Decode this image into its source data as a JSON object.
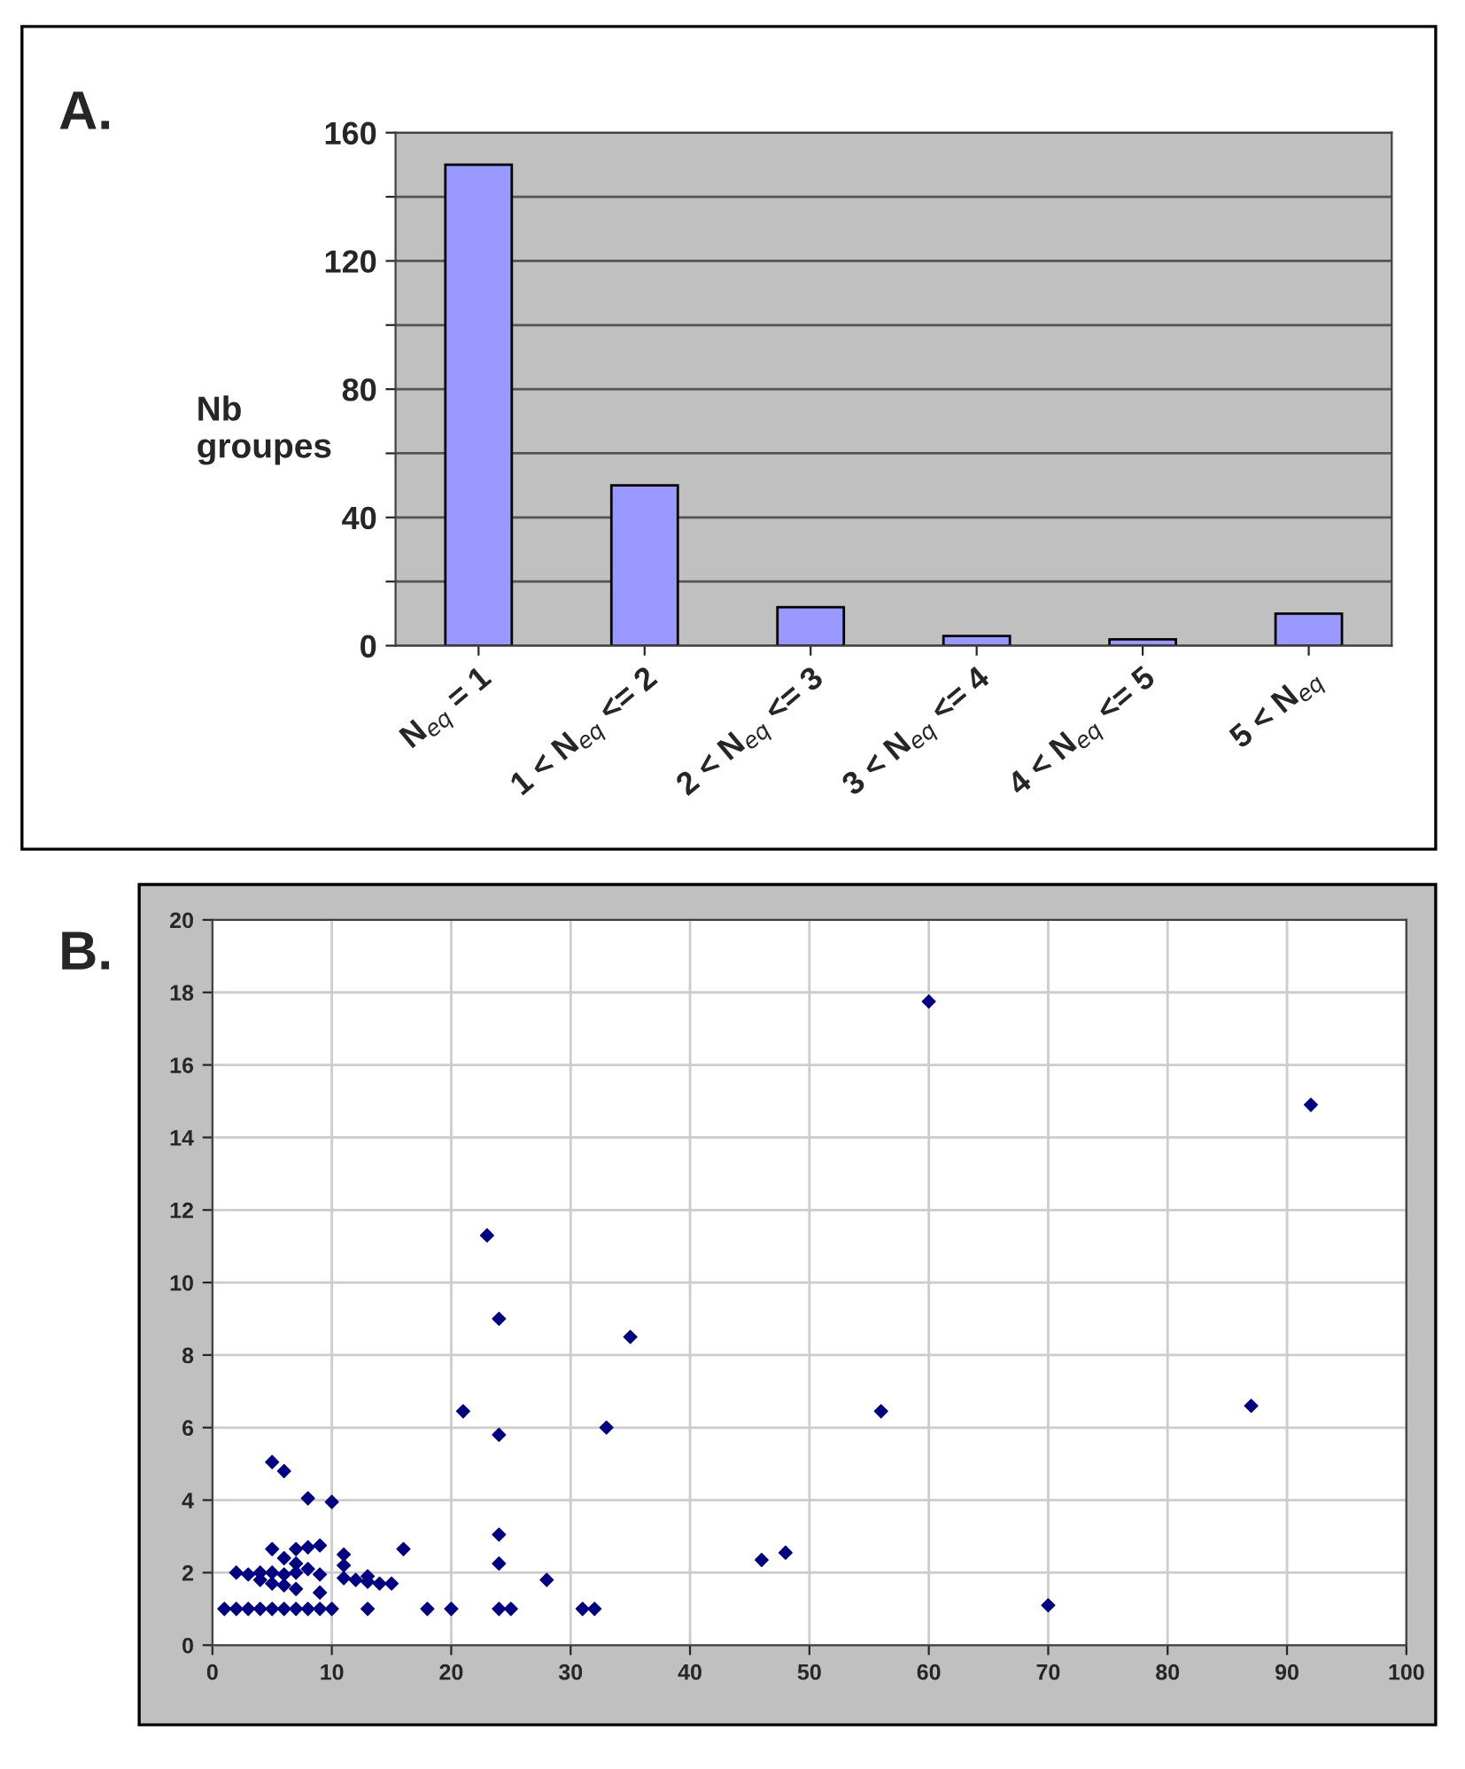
{
  "chart_data": [
    {
      "type": "bar",
      "ylabel": "Nb\ngroupes",
      "annotations": [
        "A."
      ],
      "categories": [
        "N$_{eq}$ = 1",
        "1 < N$_{eq}$ <= 2",
        "2 < N$_{eq}$ <= 3",
        "3 < N$_{eq}$ <= 4",
        "4 < N$_{eq}$ <= 5",
        "5 < N$_{eq}$"
      ],
      "values": [
        150,
        50,
        12,
        3,
        2,
        10
      ],
      "color": "#9999ff",
      "ylim": [
        0,
        160
      ],
      "yticks": [
        0,
        {
          "value": 20,
          "label": null
        },
        40,
        {
          "value": 60,
          "label": null
        },
        80,
        {
          "value": 100,
          "label": null
        },
        120,
        {
          "value": 140,
          "label": null
        },
        160
      ],
      "grid": "y"
    },
    {
      "type": "scatter",
      "annotations": [
        "B."
      ],
      "color": "#000080",
      "marker": "diamond",
      "x": [
        1,
        2,
        3,
        4,
        5,
        6,
        7,
        8,
        9,
        10,
        13,
        18,
        20,
        24,
        25,
        31,
        32,
        2,
        3,
        4,
        5,
        6,
        7,
        8,
        9,
        4,
        5,
        6,
        7,
        9,
        5,
        6,
        7,
        7,
        8,
        9,
        5,
        6,
        8,
        10,
        11,
        11,
        11,
        12,
        13,
        13,
        14,
        15,
        16,
        21,
        24,
        24,
        24,
        28,
        33,
        23,
        24,
        35,
        60,
        92,
        46,
        48,
        56,
        70,
        87
      ],
      "values": [
        1,
        1,
        1,
        1,
        1,
        1,
        1,
        1,
        1,
        1,
        1,
        1,
        1,
        1,
        1,
        1,
        1,
        2.0,
        1.95,
        2.0,
        2.0,
        1.95,
        2.0,
        2.1,
        1.95,
        1.8,
        1.7,
        1.65,
        1.55,
        1.45,
        2.65,
        2.4,
        2.65,
        2.25,
        2.7,
        2.75,
        5.05,
        4.8,
        4.05,
        3.95,
        2.5,
        2.2,
        1.85,
        1.8,
        1.9,
        1.75,
        1.7,
        1.7,
        2.65,
        6.45,
        5.8,
        3.05,
        2.25,
        1.8,
        6.0,
        11.3,
        9.0,
        8.5,
        17.75,
        14.9,
        2.35,
        2.55,
        6.45,
        1.1,
        6.6
      ],
      "xlim": [
        0,
        100
      ],
      "xticks": [
        0,
        10,
        20,
        30,
        40,
        50,
        60,
        70,
        80,
        90,
        100
      ],
      "ylim": [
        0,
        20
      ],
      "yticks": [
        0,
        2,
        4,
        6,
        8,
        10,
        12,
        14,
        16,
        18,
        20
      ],
      "grid": true
    }
  ]
}
